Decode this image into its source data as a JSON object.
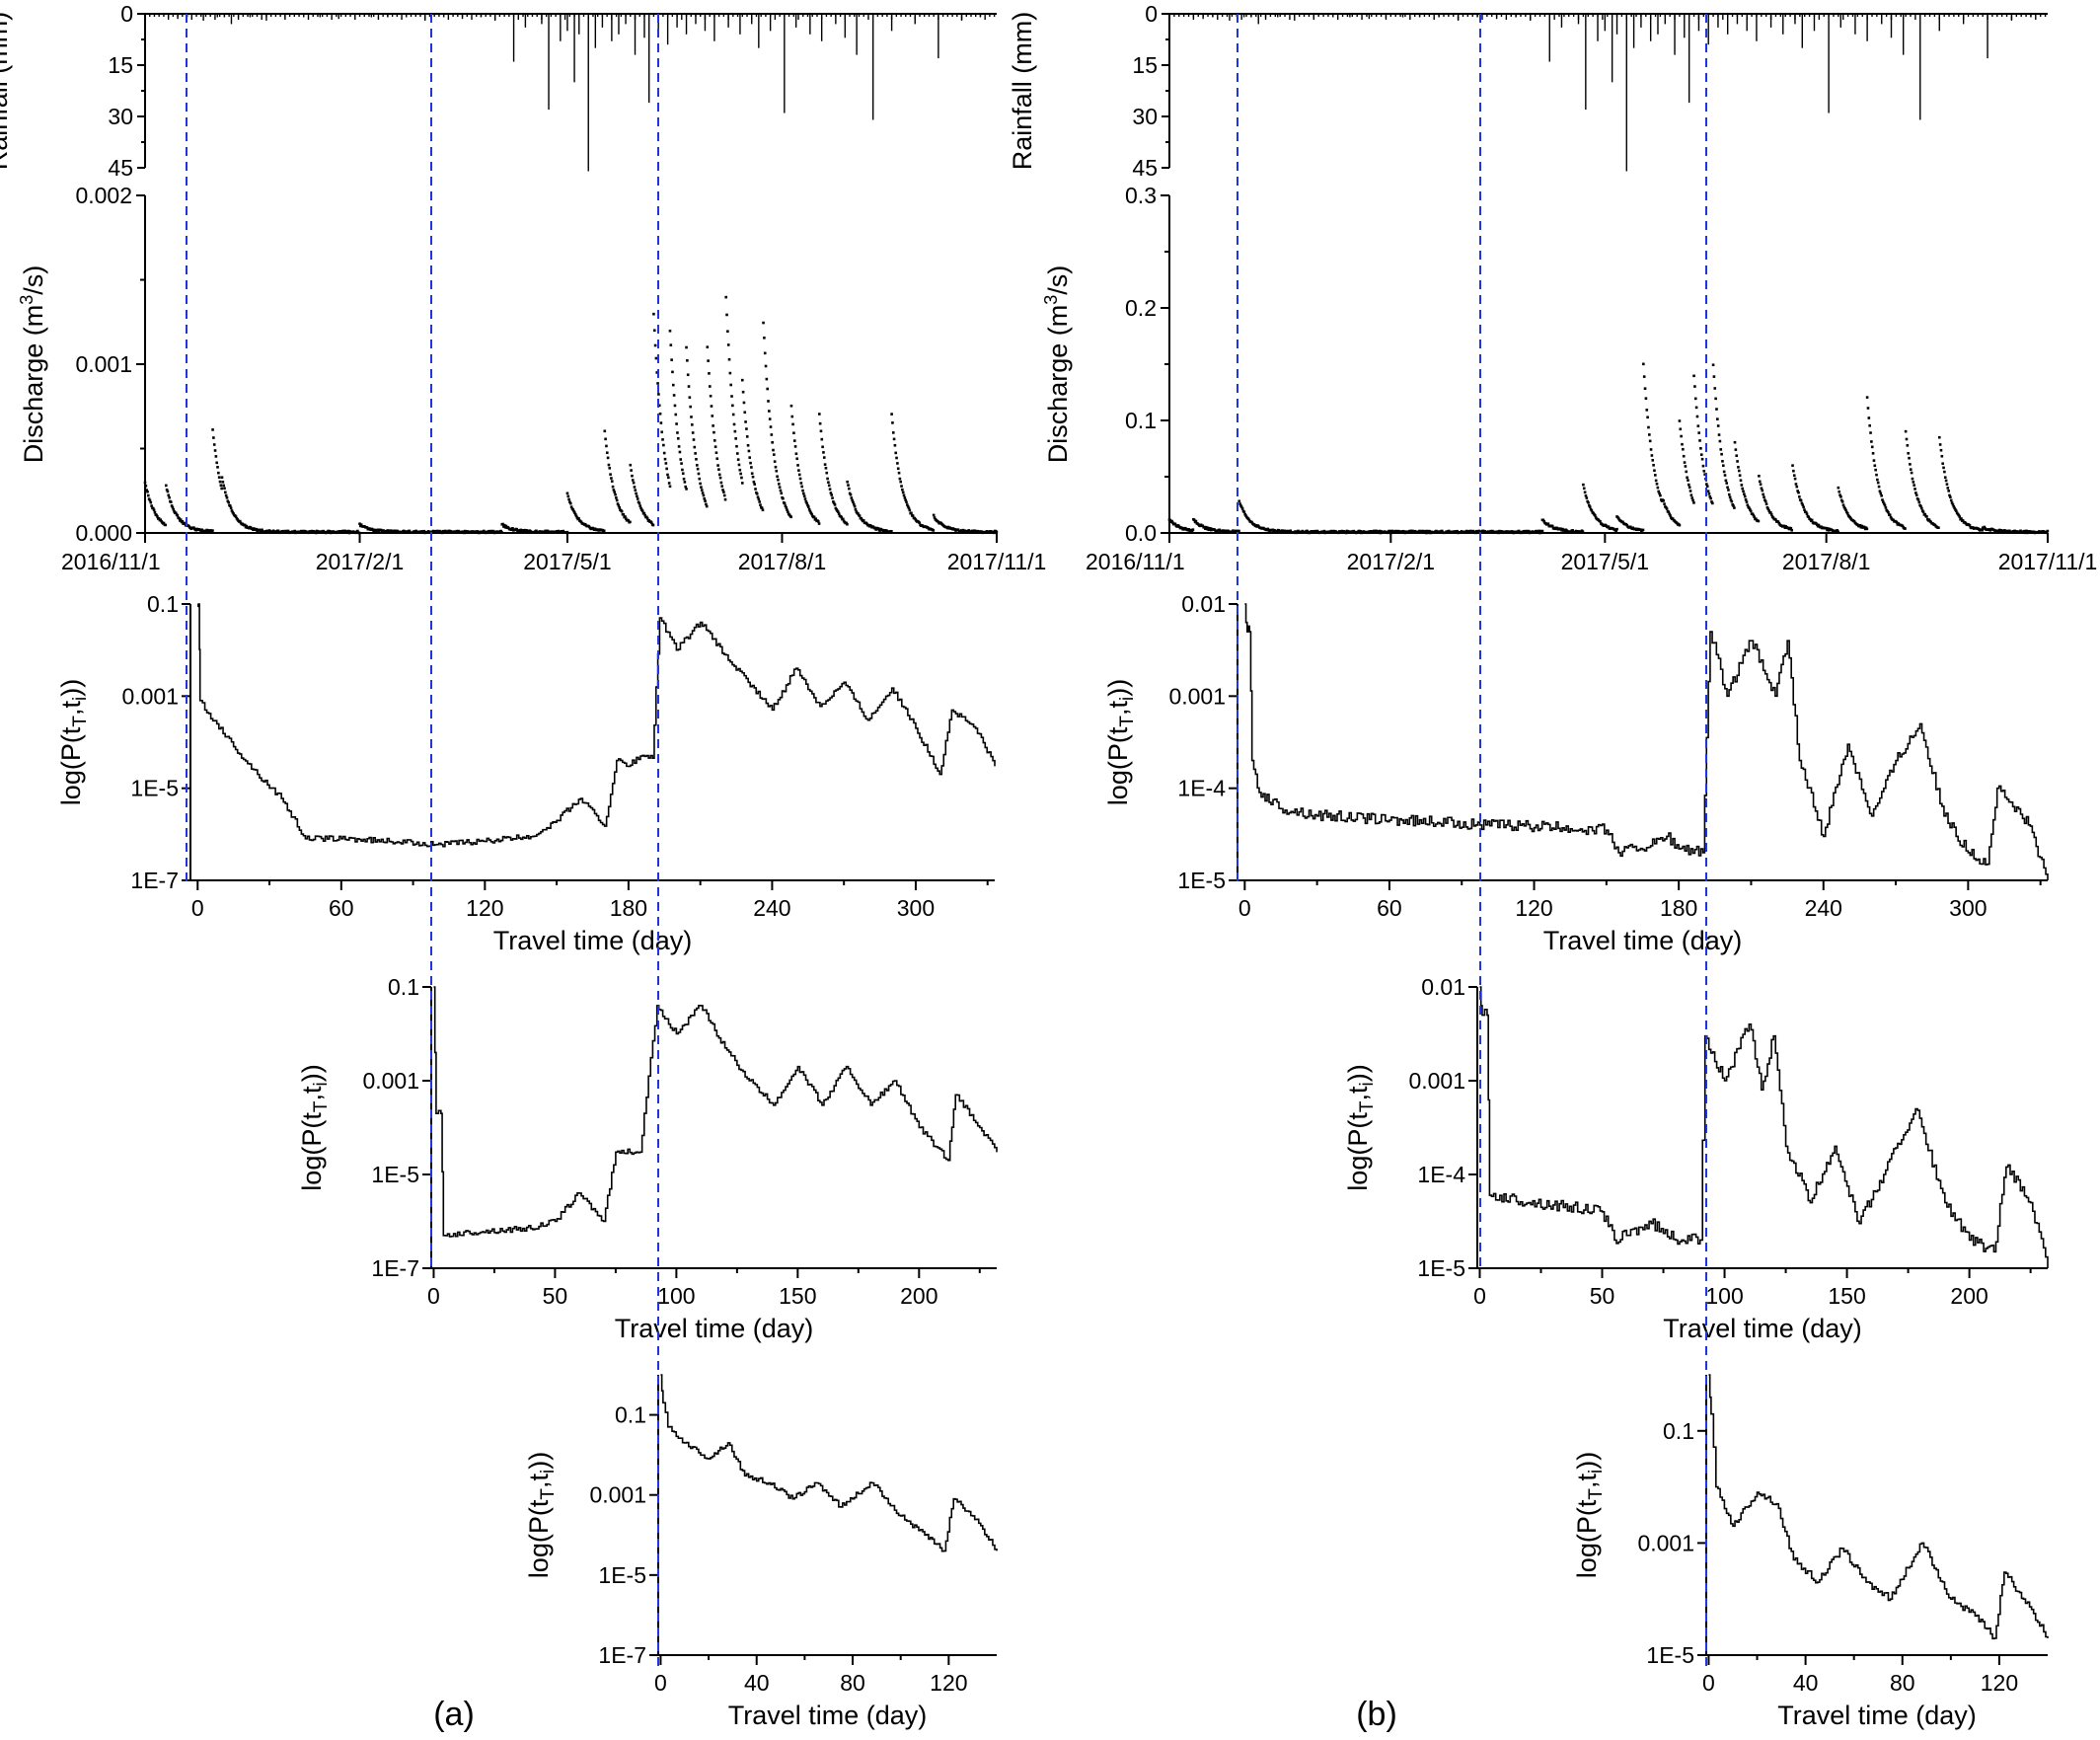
{
  "figure": {
    "panel_labels": [
      "(a)",
      "(b)"
    ]
  },
  "colors": {
    "guide_lines": "#1f35e0",
    "data": "#000000"
  },
  "chart_data": [
    {
      "id": "a-rainfall",
      "type": "bar",
      "ylabel": "Rainfall (mm)",
      "ylim": [
        0,
        45
      ],
      "y_inverted": true,
      "yticks": [
        0,
        15,
        30,
        45
      ],
      "xlim": [
        0,
        365
      ],
      "x": [
        10,
        14,
        18,
        25,
        31,
        34,
        37,
        40,
        45,
        52,
        60,
        68,
        75,
        83,
        90,
        97,
        104,
        112,
        120,
        128,
        136,
        144,
        150,
        158,
        163,
        170,
        173,
        178,
        181,
        184,
        186,
        190,
        193,
        196,
        200,
        203,
        206,
        210,
        214,
        216,
        220,
        224,
        228,
        232,
        236,
        240,
        244,
        250,
        255,
        260,
        263,
        268,
        274,
        279,
        285,
        290,
        296,
        300,
        305,
        312,
        320,
        330,
        340,
        350,
        358
      ],
      "values": [
        1,
        1.5,
        1,
        2,
        1,
        1,
        3,
        1,
        1,
        2,
        1,
        1,
        1,
        1.5,
        1,
        1,
        1,
        1,
        2,
        1,
        1.5,
        1,
        2,
        14,
        4,
        3,
        28,
        8,
        5,
        20,
        6,
        46,
        10,
        4,
        8,
        6,
        3,
        12,
        7,
        26,
        5,
        9,
        4,
        6,
        3,
        5,
        8,
        4,
        6,
        3,
        10,
        5,
        29,
        4,
        6,
        8,
        3,
        7,
        12,
        31,
        5,
        3,
        13,
        2,
        1
      ]
    },
    {
      "id": "a-discharge",
      "type": "scatter",
      "ylabel": "Discharge (m³/s)",
      "ylim": [
        0,
        0.002
      ],
      "yticks": [
        "0.000",
        "0.001",
        "0.002"
      ],
      "xlim": [
        0,
        365
      ],
      "xtick_labels": [
        "2016/11/1",
        "2017/2/1",
        "2017/5/1",
        "2017/8/1",
        "2017/11/1"
      ],
      "xtick_positions": [
        0,
        92,
        181,
        273,
        365
      ],
      "peaks": [
        [
          0,
          0.0003
        ],
        [
          9,
          0.00028
        ],
        [
          29,
          0.00061
        ],
        [
          33,
          0.00033
        ],
        [
          92,
          5e-05
        ],
        [
          153,
          5e-05
        ],
        [
          181,
          0.00023
        ],
        [
          197,
          0.0006
        ],
        [
          208,
          0.0004
        ],
        [
          218,
          0.0013
        ],
        [
          225,
          0.0012
        ],
        [
          232,
          0.0011
        ],
        [
          241,
          0.0011
        ],
        [
          249,
          0.0014
        ],
        [
          256,
          0.0009
        ],
        [
          265,
          0.00125
        ],
        [
          277,
          0.00075
        ],
        [
          289,
          0.0007
        ],
        [
          301,
          0.0003
        ],
        [
          320,
          0.0007
        ],
        [
          338,
          0.0001
        ]
      ]
    },
    {
      "id": "a-ttd-1",
      "type": "line",
      "xlabel": "Travel time (day)",
      "ylabel": "log(P(tT,ti))",
      "y_scale": "log",
      "ylim": [
        1e-07,
        0.1
      ],
      "ytick_labels": [
        "1E-7",
        "1E-5",
        "0.001",
        "0.1"
      ],
      "xlim": [
        -3,
        333
      ],
      "xticks": [
        0,
        60,
        120,
        180,
        240,
        300
      ],
      "points": [
        [
          0,
          0.1
        ],
        [
          0.5,
          0.1
        ],
        [
          1,
          0.0008
        ],
        [
          3,
          0.0005
        ],
        [
          8,
          0.00025
        ],
        [
          15,
          8e-05
        ],
        [
          25,
          2e-05
        ],
        [
          35,
          6e-06
        ],
        [
          45,
          8e-07
        ],
        [
          60,
          8e-07
        ],
        [
          80,
          7e-07
        ],
        [
          100,
          6e-07
        ],
        [
          120,
          7e-07
        ],
        [
          140,
          9e-07
        ],
        [
          150,
          2e-06
        ],
        [
          160,
          6e-06
        ],
        [
          170,
          1.5e-06
        ],
        [
          175,
          4e-05
        ],
        [
          180,
          3e-05
        ],
        [
          185,
          5e-05
        ],
        [
          190,
          4.5e-05
        ],
        [
          193,
          0.05
        ],
        [
          200,
          0.01
        ],
        [
          210,
          0.04
        ],
        [
          220,
          0.008
        ],
        [
          230,
          0.002
        ],
        [
          240,
          0.0005
        ],
        [
          250,
          0.004
        ],
        [
          260,
          0.0006
        ],
        [
          270,
          0.002
        ],
        [
          280,
          0.0003
        ],
        [
          290,
          0.0015
        ],
        [
          300,
          0.0002
        ],
        [
          310,
          2e-05
        ],
        [
          315,
          0.0005
        ],
        [
          325,
          0.0002
        ],
        [
          333,
          3e-05
        ]
      ]
    },
    {
      "id": "a-ttd-2",
      "type": "line",
      "xlabel": "Travel time (day)",
      "ylabel": "log(P(tT,ti))",
      "y_scale": "log",
      "ylim": [
        1e-07,
        0.1
      ],
      "ytick_labels": [
        "1E-7",
        "1E-5",
        "0.001",
        "0.1"
      ],
      "xlim": [
        -1,
        232
      ],
      "xticks": [
        0,
        50,
        100,
        150,
        200
      ],
      "points": [
        [
          0,
          0.1
        ],
        [
          1,
          0.0002
        ],
        [
          3,
          0.0002
        ],
        [
          4,
          5e-07
        ],
        [
          20,
          6e-07
        ],
        [
          40,
          7e-07
        ],
        [
          50,
          1e-06
        ],
        [
          60,
          4e-06
        ],
        [
          70,
          1e-06
        ],
        [
          75,
          3e-05
        ],
        [
          85,
          3e-05
        ],
        [
          92,
          0.04
        ],
        [
          100,
          0.01
        ],
        [
          110,
          0.04
        ],
        [
          120,
          0.005
        ],
        [
          130,
          0.001
        ],
        [
          140,
          0.0003
        ],
        [
          150,
          0.002
        ],
        [
          160,
          0.0003
        ],
        [
          170,
          0.002
        ],
        [
          180,
          0.0003
        ],
        [
          190,
          0.001
        ],
        [
          200,
          0.0001
        ],
        [
          212,
          2e-05
        ],
        [
          215,
          0.0005
        ],
        [
          225,
          0.0001
        ],
        [
          232,
          3e-05
        ]
      ]
    },
    {
      "id": "a-ttd-3",
      "type": "line",
      "xlabel": "Travel time (day)",
      "ylabel": "log(P(tT,ti))",
      "y_scale": "log",
      "ylim": [
        1e-07,
        1
      ],
      "ytick_labels": [
        "1E-7",
        "1E-5",
        "0.001",
        "0.1"
      ],
      "xlim": [
        -1,
        140
      ],
      "xticks": [
        0,
        40,
        80,
        120
      ],
      "points": [
        [
          0,
          1
        ],
        [
          1,
          0.2
        ],
        [
          3,
          0.05
        ],
        [
          10,
          0.02
        ],
        [
          20,
          0.008
        ],
        [
          28,
          0.02
        ],
        [
          35,
          0.003
        ],
        [
          45,
          0.002
        ],
        [
          55,
          0.0008
        ],
        [
          65,
          0.002
        ],
        [
          75,
          0.0005
        ],
        [
          88,
          0.002
        ],
        [
          100,
          0.0003
        ],
        [
          110,
          0.0001
        ],
        [
          118,
          4e-05
        ],
        [
          122,
          0.0008
        ],
        [
          130,
          0.0003
        ],
        [
          140,
          4e-05
        ]
      ]
    },
    {
      "id": "b-rainfall",
      "type": "bar",
      "ylabel": "Rainfall (mm)",
      "ylim": [
        0,
        45
      ],
      "y_inverted": true,
      "yticks": [
        0,
        15,
        30,
        45
      ],
      "xlim": [
        0,
        365
      ],
      "x": [
        10,
        14,
        18,
        25,
        31,
        34,
        37,
        40,
        45,
        52,
        60,
        68,
        75,
        83,
        90,
        97,
        104,
        112,
        120,
        128,
        136,
        144,
        150,
        158,
        163,
        170,
        173,
        178,
        181,
        184,
        186,
        190,
        193,
        196,
        200,
        203,
        206,
        210,
        214,
        216,
        220,
        224,
        228,
        232,
        236,
        240,
        244,
        250,
        255,
        260,
        263,
        268,
        274,
        279,
        285,
        290,
        296,
        300,
        305,
        312,
        320,
        330,
        340,
        350,
        358
      ],
      "values": [
        1,
        1.5,
        1,
        2,
        1,
        1,
        3,
        1,
        1,
        2,
        1,
        1,
        1,
        1.5,
        1,
        1,
        1,
        1,
        2,
        1,
        1.5,
        1,
        2,
        14,
        4,
        3,
        28,
        8,
        5,
        20,
        6,
        46,
        10,
        4,
        8,
        6,
        3,
        12,
        7,
        26,
        5,
        9,
        4,
        6,
        3,
        5,
        8,
        4,
        6,
        3,
        10,
        5,
        29,
        4,
        6,
        8,
        3,
        7,
        12,
        31,
        5,
        3,
        13,
        2,
        1
      ]
    },
    {
      "id": "b-discharge",
      "type": "scatter",
      "ylabel": "Discharge (m³/s)",
      "ylim": [
        0,
        0.3
      ],
      "yticks": [
        "0.0",
        "0.1",
        "0.2",
        "0.3"
      ],
      "xlim": [
        0,
        365
      ],
      "xtick_labels": [
        "2016/11/1",
        "2017/2/1",
        "2017/5/1",
        "2017/8/1",
        "2017/11/1"
      ],
      "xtick_positions": [
        0,
        92,
        181,
        273,
        365
      ],
      "peaks": [
        [
          0,
          0.012
        ],
        [
          10,
          0.012
        ],
        [
          29,
          0.028
        ],
        [
          92,
          0.001
        ],
        [
          155,
          0.012
        ],
        [
          172,
          0.042
        ],
        [
          186,
          0.015
        ],
        [
          197,
          0.15
        ],
        [
          205,
          0.03
        ],
        [
          212,
          0.1
        ],
        [
          218,
          0.14
        ],
        [
          226,
          0.15
        ],
        [
          235,
          0.08
        ],
        [
          245,
          0.05
        ],
        [
          259,
          0.06
        ],
        [
          278,
          0.04
        ],
        [
          290,
          0.12
        ],
        [
          306,
          0.09
        ],
        [
          320,
          0.085
        ],
        [
          338,
          0.005
        ]
      ]
    },
    {
      "id": "b-ttd-1",
      "type": "line",
      "xlabel": "Travel time (day)",
      "ylabel": "log(P(tT,ti))",
      "y_scale": "log",
      "ylim": [
        1e-05,
        0.01
      ],
      "ytick_labels": [
        "1E-5",
        "1E-4",
        "0.001",
        "0.01"
      ],
      "xlim": [
        -3,
        333
      ],
      "xticks": [
        0,
        60,
        120,
        180,
        240,
        300
      ],
      "points": [
        [
          0,
          0.01
        ],
        [
          1,
          0.005
        ],
        [
          2,
          0.005
        ],
        [
          3,
          0.0002
        ],
        [
          6,
          9e-05
        ],
        [
          15,
          6e-05
        ],
        [
          30,
          5e-05
        ],
        [
          60,
          4.5e-05
        ],
        [
          100,
          4e-05
        ],
        [
          150,
          3.5e-05
        ],
        [
          155,
          2e-05
        ],
        [
          170,
          2.5e-05
        ],
        [
          175,
          3e-05
        ],
        [
          180,
          2.2e-05
        ],
        [
          190,
          2e-05
        ],
        [
          193,
          0.005
        ],
        [
          200,
          0.001
        ],
        [
          210,
          0.004
        ],
        [
          220,
          0.001
        ],
        [
          225,
          0.004
        ],
        [
          230,
          0.0002
        ],
        [
          240,
          3e-05
        ],
        [
          250,
          0.0003
        ],
        [
          260,
          5e-05
        ],
        [
          270,
          0.0002
        ],
        [
          280,
          0.0005
        ],
        [
          290,
          5e-05
        ],
        [
          300,
          2e-05
        ],
        [
          308,
          1.5e-05
        ],
        [
          312,
          0.0001
        ],
        [
          325,
          4e-05
        ],
        [
          333,
          1e-05
        ]
      ]
    },
    {
      "id": "b-ttd-2",
      "type": "line",
      "xlabel": "Travel time (day)",
      "ylabel": "log(P(tT,ti))",
      "y_scale": "log",
      "ylim": [
        1e-05,
        0.01
      ],
      "ytick_labels": [
        "1E-5",
        "1E-4",
        "0.001",
        "0.01"
      ],
      "xlim": [
        -1,
        232
      ],
      "xticks": [
        0,
        50,
        100,
        150,
        200
      ],
      "points": [
        [
          0,
          0.01
        ],
        [
          1,
          0.005
        ],
        [
          3,
          0.005
        ],
        [
          4,
          6e-05
        ],
        [
          20,
          5e-05
        ],
        [
          50,
          4e-05
        ],
        [
          55,
          2e-05
        ],
        [
          70,
          3e-05
        ],
        [
          80,
          2e-05
        ],
        [
          90,
          2e-05
        ],
        [
          92,
          0.003
        ],
        [
          100,
          0.001
        ],
        [
          110,
          0.004
        ],
        [
          115,
          0.0008
        ],
        [
          120,
          0.003
        ],
        [
          125,
          0.0002
        ],
        [
          135,
          5e-05
        ],
        [
          145,
          0.0002
        ],
        [
          155,
          3e-05
        ],
        [
          165,
          0.0001
        ],
        [
          178,
          0.0005
        ],
        [
          190,
          5e-05
        ],
        [
          200,
          2e-05
        ],
        [
          210,
          1.5e-05
        ],
        [
          215,
          0.00012
        ],
        [
          225,
          5e-05
        ],
        [
          232,
          1e-05
        ]
      ]
    },
    {
      "id": "b-ttd-3",
      "type": "line",
      "xlabel": "Travel time (day)",
      "ylabel": "log(P(tT,ti))",
      "y_scale": "log",
      "ylim": [
        1e-05,
        1
      ],
      "ytick_labels": [
        "1E-5",
        "0.001",
        "0.1"
      ],
      "xlim": [
        -1,
        140
      ],
      "xticks": [
        0,
        40,
        80,
        120
      ],
      "points": [
        [
          0,
          1
        ],
        [
          1,
          0.2
        ],
        [
          3,
          0.01
        ],
        [
          10,
          0.002
        ],
        [
          20,
          0.008
        ],
        [
          28,
          0.005
        ],
        [
          35,
          0.0005
        ],
        [
          45,
          0.0002
        ],
        [
          55,
          0.0008
        ],
        [
          65,
          0.0002
        ],
        [
          75,
          0.0001
        ],
        [
          88,
          0.001
        ],
        [
          100,
          0.0001
        ],
        [
          110,
          5e-05
        ],
        [
          118,
          2e-05
        ],
        [
          122,
          0.0003
        ],
        [
          130,
          0.0001
        ],
        [
          140,
          2e-05
        ]
      ]
    }
  ]
}
